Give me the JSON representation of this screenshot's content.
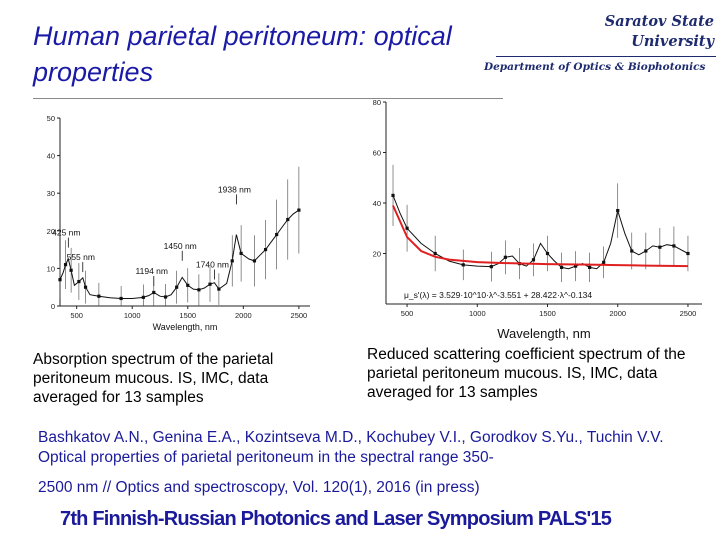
{
  "header": {
    "title": "Human parietal peritoneum: optical properties",
    "university_line1": "Saratov State",
    "university_line2": "University",
    "department": "Department of Optics & Biophotonics"
  },
  "captions": {
    "left": "Absorption spectrum of the parietal peritoneum mucous. IS, IMC, data averaged for 13 samples",
    "right": "Reduced scattering coefficient spectrum of the parietal peritoneum mucous. IS, IMC, data averaged for 13 samples"
  },
  "reference": {
    "line_a": "Bashkatov A.N., Genina E.A., Kozintseva M.D., Kochubey V.I., Gorodkov S.Yu., Tuchin V.V. Optical properties of parietal peritoneum in the spectral range 350-",
    "line_b": "2500 nm // Optics and spectroscopy, Vol. 120(1), 2016 (in press)"
  },
  "conference": "7th Finnish-Russian Photonics and Laser Symposium PALS'15",
  "colors": {
    "title": "#1a1aa6",
    "university": "#1d2a6e",
    "reference": "#1a1a9a",
    "fit_curve": "#e02020"
  },
  "chart_data": [
    {
      "type": "line",
      "xlabel": "Wavelength, nm",
      "ylabel": "",
      "xlim": [
        350,
        2600
      ],
      "ylim": [
        0,
        50
      ],
      "x_ticks": [
        500,
        1000,
        1500,
        2000,
        2500
      ],
      "y_ticks": [
        0,
        10,
        20,
        30,
        40,
        50
      ],
      "grid": false,
      "annotations": [
        {
          "label": "425 nm",
          "x": 425,
          "y": 15.0
        },
        {
          "label": "555 nm",
          "x": 555,
          "y": 8.5
        },
        {
          "label": "1194 nm",
          "x": 1194,
          "y": 4.8
        },
        {
          "label": "1450 nm",
          "x": 1450,
          "y": 11.5
        },
        {
          "label": "1740 nm",
          "x": 1740,
          "y": 6.5
        },
        {
          "label": "1938 nm",
          "x": 1938,
          "y": 26.5
        }
      ],
      "series": [
        {
          "x": [
            350,
            380,
            400,
            425,
            450,
            480,
            520,
            555,
            580,
            620,
            700,
            800,
            900,
            1000,
            1100,
            1150,
            1194,
            1250,
            1300,
            1350,
            1400,
            1450,
            1500,
            1550,
            1600,
            1650,
            1700,
            1740,
            1780,
            1850,
            1900,
            1938,
            1980,
            2050,
            2100,
            2150,
            2200,
            2250,
            2300,
            2350,
            2400,
            2450,
            2500
          ],
          "y": [
            7.0,
            9.0,
            11.0,
            12.5,
            9.5,
            5.5,
            6.5,
            7.5,
            5.0,
            3.0,
            2.6,
            2.2,
            2.0,
            2.0,
            2.3,
            2.8,
            3.6,
            2.6,
            2.4,
            3.0,
            5.0,
            7.6,
            5.5,
            4.5,
            4.3,
            4.8,
            5.8,
            6.2,
            4.5,
            6.0,
            12.0,
            19.0,
            14.0,
            12.5,
            12.0,
            13.5,
            15.0,
            17.0,
            19.0,
            21.0,
            23.0,
            24.5,
            25.5
          ]
        }
      ]
    },
    {
      "type": "line",
      "xlabel": "Wavelength, nm",
      "ylabel": "",
      "xlim": [
        350,
        2600
      ],
      "ylim": [
        0,
        80
      ],
      "x_ticks": [
        500,
        1000,
        1500,
        2000,
        2500
      ],
      "y_ticks": [
        20,
        40,
        60,
        80
      ],
      "grid": false,
      "fit_label": "μ_s'(λ) = 3.529·10^10·λ^-3.551 + 28.422·λ^-0.134",
      "series": [
        {
          "x": [
            400,
            450,
            500,
            600,
            700,
            800,
            900,
            1000,
            1100,
            1150,
            1200,
            1250,
            1300,
            1350,
            1400,
            1450,
            1500,
            1550,
            1600,
            1650,
            1700,
            1750,
            1800,
            1850,
            1900,
            1950,
            2000,
            2050,
            2100,
            2150,
            2200,
            2250,
            2300,
            2350,
            2400,
            2450,
            2500
          ],
          "y": [
            43.0,
            36.0,
            30.0,
            24.0,
            20.0,
            17.0,
            15.5,
            15.0,
            14.8,
            16.0,
            18.5,
            19.0,
            16.0,
            15.0,
            17.5,
            24.0,
            20.0,
            17.0,
            14.5,
            14.0,
            15.0,
            16.0,
            14.5,
            14.0,
            16.5,
            24.0,
            37.0,
            28.0,
            21.0,
            19.5,
            21.0,
            23.0,
            22.5,
            23.5,
            23.0,
            21.5,
            20.0
          ]
        },
        {
          "x": [
            400,
            500,
            600,
            700,
            800,
            1000,
            1200,
            1500,
            1800,
            2000,
            2200,
            2500
          ],
          "y": [
            39.0,
            26.5,
            21.0,
            18.7,
            17.6,
            16.6,
            16.2,
            15.8,
            15.6,
            15.4,
            15.2,
            15.0
          ]
        }
      ]
    }
  ]
}
